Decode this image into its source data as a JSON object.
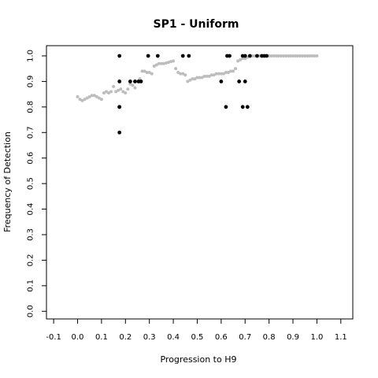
{
  "chart_data": {
    "type": "scatter",
    "title": "SP1 - Uniform",
    "xlabel": "Progression to H9",
    "ylabel": "Frequency of Detection",
    "xlim": [
      -0.13,
      1.15
    ],
    "ylim": [
      -0.03,
      1.04
    ],
    "xticks": [
      "-0.1",
      "0.0",
      "0.1",
      "0.2",
      "0.3",
      "0.4",
      "0.5",
      "0.6",
      "0.7",
      "0.8",
      "0.9",
      "1.0",
      "1.1"
    ],
    "xtick_values": [
      -0.1,
      0.0,
      0.1,
      0.2,
      0.3,
      0.4,
      0.5,
      0.6,
      0.7,
      0.8,
      0.9,
      1.0,
      1.1
    ],
    "yticks": [
      "0.0",
      "0.1",
      "0.2",
      "0.3",
      "0.4",
      "0.5",
      "0.6",
      "0.7",
      "0.8",
      "0.9",
      "1.0"
    ],
    "ytick_values": [
      0.0,
      0.1,
      0.2,
      0.3,
      0.4,
      0.5,
      0.6,
      0.7,
      0.8,
      0.9,
      1.0
    ],
    "grid": false,
    "colors": {
      "observed": "#000000",
      "smoothed": "#bdbdbd"
    },
    "series": [
      {
        "color": "#bdbdbd",
        "x": [
          0.0,
          0.01,
          0.02,
          0.03,
          0.04,
          0.05,
          0.06,
          0.07,
          0.08,
          0.09,
          0.1,
          0.11,
          0.12,
          0.13,
          0.14,
          0.15,
          0.16,
          0.17,
          0.18,
          0.19,
          0.2,
          0.21,
          0.22,
          0.23,
          0.24,
          0.25,
          0.26,
          0.27,
          0.28,
          0.29,
          0.3,
          0.31,
          0.32,
          0.33,
          0.34,
          0.35,
          0.36,
          0.37,
          0.38,
          0.39,
          0.4,
          0.41,
          0.42,
          0.43,
          0.44,
          0.45,
          0.46,
          0.47,
          0.48,
          0.49,
          0.5,
          0.51,
          0.52,
          0.53,
          0.54,
          0.55,
          0.56,
          0.57,
          0.58,
          0.59,
          0.6,
          0.61,
          0.62,
          0.63,
          0.64,
          0.65,
          0.66,
          0.67,
          0.68,
          0.69,
          0.7,
          0.71,
          0.72,
          0.73,
          0.74,
          0.75,
          0.76,
          0.77,
          0.78,
          0.79,
          0.8,
          0.81,
          0.82,
          0.83,
          0.84,
          0.85,
          0.86,
          0.87,
          0.88,
          0.89,
          0.9,
          0.91,
          0.92,
          0.93,
          0.94,
          0.95,
          0.96,
          0.97,
          0.98,
          0.99,
          1.0
        ],
        "y": [
          0.84,
          0.83,
          0.825,
          0.83,
          0.835,
          0.84,
          0.845,
          0.845,
          0.84,
          0.835,
          0.83,
          0.855,
          0.86,
          0.855,
          0.86,
          0.88,
          0.86,
          0.865,
          0.87,
          0.86,
          0.855,
          0.87,
          0.89,
          0.885,
          0.875,
          0.9,
          0.91,
          0.94,
          0.94,
          0.935,
          0.935,
          0.93,
          0.96,
          0.965,
          0.97,
          0.97,
          0.97,
          0.972,
          0.975,
          0.978,
          0.98,
          0.95,
          0.935,
          0.93,
          0.93,
          0.925,
          0.9,
          0.905,
          0.91,
          0.91,
          0.915,
          0.915,
          0.915,
          0.92,
          0.92,
          0.92,
          0.925,
          0.925,
          0.93,
          0.93,
          0.93,
          0.93,
          0.935,
          0.935,
          0.94,
          0.94,
          0.95,
          0.98,
          0.985,
          0.99,
          0.99,
          0.995,
          1.0,
          1.0,
          1.0,
          1.0,
          1.0,
          1.0,
          1.0,
          1.0,
          1.0,
          1.0,
          1.0,
          1.0,
          1.0,
          1.0,
          1.0,
          1.0,
          1.0,
          1.0,
          1.0,
          1.0,
          1.0,
          1.0,
          1.0,
          1.0,
          1.0,
          1.0,
          1.0,
          1.0,
          1.0
        ]
      },
      {
        "color": "#000000",
        "x": [
          0.175,
          0.175,
          0.175,
          0.175,
          0.175,
          0.22,
          0.24,
          0.255,
          0.265,
          0.295,
          0.335,
          0.44,
          0.465,
          0.6,
          0.62,
          0.625,
          0.635,
          0.675,
          0.69,
          0.69,
          0.7,
          0.7,
          0.71,
          0.72,
          0.75,
          0.77,
          0.78,
          0.79
        ],
        "y": [
          1.0,
          0.9,
          0.8,
          0.8,
          0.7,
          0.9,
          0.9,
          0.9,
          0.9,
          1.0,
          1.0,
          1.0,
          1.0,
          0.9,
          0.8,
          1.0,
          1.0,
          0.9,
          1.0,
          0.8,
          0.9,
          1.0,
          0.8,
          1.0,
          1.0,
          1.0,
          1.0,
          1.0
        ]
      }
    ]
  }
}
